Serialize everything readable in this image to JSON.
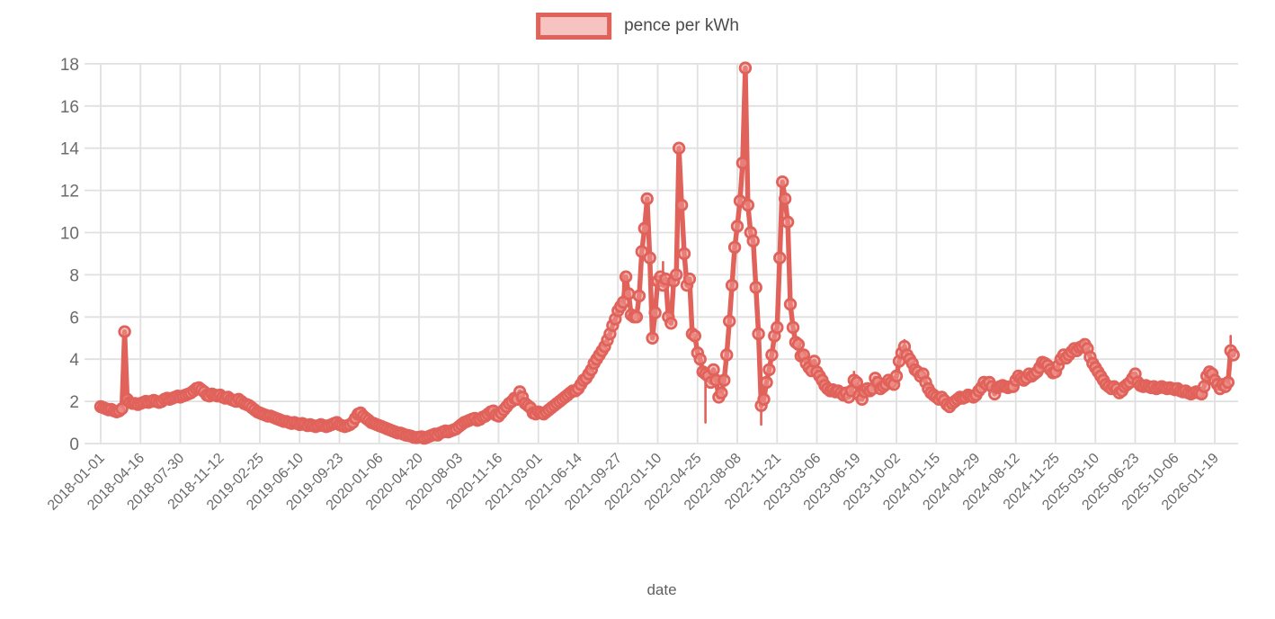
{
  "legend": {
    "label": "pence per kWh"
  },
  "colors": {
    "line": "#e0625a",
    "marker_fill": "rgba(239,150,143,0.55)",
    "legend_fill": "#f6c3c1",
    "grid": "#e0e0e0",
    "tick_text": "#6b6b6b",
    "label_text": "#5f5f5f"
  },
  "chart_data": {
    "type": "line",
    "title": "",
    "xlabel": "date",
    "ylabel": "",
    "ylim": [
      0,
      18
    ],
    "grid": true,
    "legend_position": "top-center",
    "y_ticks": [
      0,
      2,
      4,
      6,
      8,
      10,
      12,
      14,
      16,
      18
    ],
    "x_tick_labels": [
      "2018-01-01",
      "2018-04-16",
      "2018-07-30",
      "2018-11-12",
      "2019-02-25",
      "2019-06-10",
      "2019-09-23",
      "2020-01-06",
      "2020-04-20",
      "2020-08-03",
      "2020-11-16",
      "2021-03-01",
      "2021-06-14",
      "2021-09-27",
      "2022-01-10",
      "2022-04-25",
      "2022-08-08",
      "2022-11-21",
      "2023-03-06",
      "2023-06-19",
      "2023-10-02",
      "2024-01-15",
      "2024-04-29",
      "2024-08-12",
      "2024-11-25",
      "2025-03-10",
      "2025-06-23",
      "2025-10-06",
      "2026-01-19"
    ],
    "x_tick_interval_weeks": 15,
    "series": [
      {
        "name": "pence per kWh",
        "start": "2018-01-01",
        "interval_days": 7,
        "values": [
          1.75,
          1.7,
          1.65,
          1.6,
          1.62,
          1.55,
          1.5,
          1.55,
          1.65,
          5.3,
          2.1,
          1.95,
          1.9,
          1.9,
          1.85,
          1.9,
          1.95,
          2.0,
          1.95,
          2.0,
          2.05,
          2.0,
          1.95,
          2.0,
          2.1,
          2.15,
          2.1,
          2.15,
          2.2,
          2.25,
          2.2,
          2.25,
          2.3,
          2.35,
          2.4,
          2.5,
          2.6,
          2.65,
          2.55,
          2.45,
          2.3,
          2.25,
          2.35,
          2.3,
          2.25,
          2.3,
          2.2,
          2.15,
          2.2,
          2.1,
          2.05,
          2.0,
          2.1,
          2.0,
          1.9,
          1.85,
          1.8,
          1.7,
          1.6,
          1.5,
          1.45,
          1.4,
          1.35,
          1.3,
          1.3,
          1.25,
          1.2,
          1.15,
          1.1,
          1.05,
          1.05,
          1.0,
          0.95,
          1.0,
          0.95,
          0.9,
          0.95,
          0.9,
          0.85,
          0.9,
          0.85,
          0.8,
          0.85,
          0.9,
          0.85,
          0.8,
          0.85,
          0.9,
          0.95,
          1.0,
          0.9,
          0.85,
          0.8,
          0.85,
          0.9,
          1.0,
          1.2,
          1.4,
          1.45,
          1.3,
          1.2,
          1.1,
          1.0,
          0.95,
          0.9,
          0.85,
          0.8,
          0.75,
          0.7,
          0.65,
          0.6,
          0.55,
          0.5,
          0.5,
          0.45,
          0.4,
          0.38,
          0.35,
          0.3,
          0.28,
          0.3,
          0.32,
          0.25,
          0.3,
          0.35,
          0.4,
          0.45,
          0.4,
          0.5,
          0.55,
          0.6,
          0.55,
          0.6,
          0.65,
          0.7,
          0.8,
          0.9,
          1.0,
          1.05,
          1.1,
          1.15,
          1.2,
          1.1,
          1.15,
          1.25,
          1.3,
          1.4,
          1.5,
          1.55,
          1.35,
          1.3,
          1.45,
          1.6,
          1.75,
          1.9,
          2.0,
          2.15,
          2.1,
          2.45,
          2.2,
          1.9,
          1.8,
          1.7,
          1.45,
          1.4,
          1.5,
          1.45,
          1.4,
          1.5,
          1.6,
          1.7,
          1.8,
          1.9,
          2.0,
          2.1,
          2.2,
          2.3,
          2.4,
          2.5,
          2.5,
          2.6,
          2.8,
          3.0,
          3.1,
          3.3,
          3.5,
          3.8,
          4.0,
          4.2,
          4.4,
          4.6,
          4.9,
          5.2,
          5.6,
          5.9,
          6.3,
          6.5,
          6.7,
          7.9,
          7.1,
          6.1,
          6.0,
          6.0,
          7.0,
          9.1,
          10.2,
          11.6,
          8.8,
          5.0,
          6.2,
          7.7,
          7.9,
          7.5,
          7.8,
          6.0,
          5.7,
          7.7,
          8.0,
          14.0,
          11.3,
          9.0,
          7.5,
          7.8,
          5.2,
          5.1,
          4.3,
          4.0,
          3.4,
          3.3,
          3.2,
          2.9,
          3.5,
          3.0,
          2.2,
          2.4,
          3.0,
          4.2,
          5.8,
          7.5,
          9.3,
          10.3,
          11.5,
          13.3,
          17.8,
          11.3,
          10.0,
          9.6,
          7.4,
          5.2,
          1.8,
          2.1,
          2.9,
          3.5,
          4.2,
          5.1,
          5.5,
          8.8,
          12.4,
          11.6,
          10.5,
          6.6,
          5.5,
          4.8,
          4.7,
          4.15,
          4.2,
          3.8,
          3.6,
          3.45,
          3.9,
          3.4,
          3.2,
          3.0,
          2.75,
          2.6,
          2.5,
          2.55,
          2.45,
          2.5,
          2.4,
          2.3,
          2.4,
          2.2,
          2.5,
          3.0,
          2.9,
          2.3,
          2.1,
          2.45,
          2.6,
          2.5,
          2.6,
          3.1,
          2.9,
          2.6,
          2.7,
          2.8,
          3.0,
          2.9,
          2.8,
          3.2,
          3.9,
          4.3,
          4.6,
          4.2,
          4.0,
          3.8,
          3.5,
          3.4,
          3.2,
          3.3,
          2.9,
          2.6,
          2.4,
          2.3,
          2.2,
          2.1,
          2.2,
          2.05,
          1.85,
          1.75,
          1.9,
          2.0,
          2.1,
          2.2,
          2.15,
          2.2,
          2.3,
          2.25,
          2.2,
          2.3,
          2.5,
          2.65,
          2.9,
          2.8,
          2.9,
          2.7,
          2.35,
          2.65,
          2.7,
          2.75,
          2.7,
          2.65,
          2.7,
          2.7,
          3.0,
          3.2,
          3.1,
          3.0,
          3.1,
          3.3,
          3.2,
          3.3,
          3.4,
          3.6,
          3.85,
          3.8,
          3.7,
          3.5,
          3.35,
          3.4,
          3.7,
          4.0,
          4.2,
          4.05,
          4.2,
          4.35,
          4.5,
          4.4,
          4.55,
          4.6,
          4.7,
          4.5,
          4.1,
          3.8,
          3.6,
          3.4,
          3.2,
          3.0,
          2.8,
          2.7,
          2.6,
          2.7,
          2.6,
          2.4,
          2.5,
          2.7,
          2.8,
          2.9,
          3.1,
          3.3,
          2.9,
          2.75,
          2.7,
          2.75,
          2.7,
          2.65,
          2.7,
          2.6,
          2.65,
          2.7,
          2.65,
          2.6,
          2.65,
          2.6,
          2.55,
          2.6,
          2.5,
          2.45,
          2.5,
          2.4,
          2.35,
          2.4,
          2.45,
          2.4,
          2.35,
          2.7,
          3.2,
          3.4,
          3.3,
          3.0,
          2.8,
          2.6,
          2.8,
          2.7,
          2.9,
          4.4,
          4.2
        ]
      }
    ],
    "whisker_spikes": [
      {
        "date": "2021-10-11",
        "value": 8.1
      },
      {
        "date": "2022-01-24",
        "value": 8.6
      },
      {
        "date": "2022-05-16",
        "value": 1.0
      },
      {
        "date": "2022-10-10",
        "value": 0.9
      },
      {
        "date": "2023-06-12",
        "value": 3.4
      },
      {
        "date": "2023-10-23",
        "value": 4.9
      },
      {
        "date": "2026-03-02",
        "value": 5.1
      }
    ]
  }
}
